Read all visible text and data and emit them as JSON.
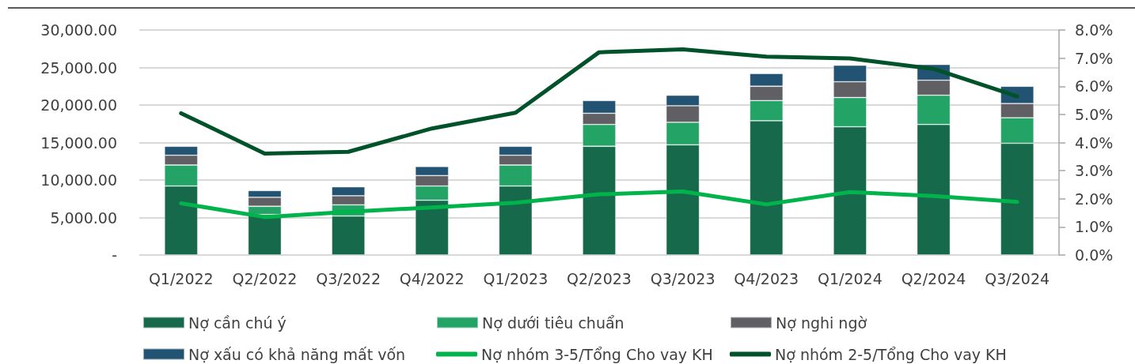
{
  "chart_data": {
    "type": "bar",
    "stacked": true,
    "categories": [
      "Q1/2022",
      "Q2/2022",
      "Q3/2022",
      "Q4/2022",
      "Q1/2023",
      "Q2/2023",
      "Q3/2023",
      "Q4/2023",
      "Q1/2024",
      "Q2/2024",
      "Q3/2024"
    ],
    "series": [
      {
        "name": "Nợ cần chú ý",
        "color": "#17694c",
        "values": [
          9200,
          5400,
          5200,
          7300,
          9200,
          14500,
          14700,
          17900,
          17100,
          17400,
          14900
        ]
      },
      {
        "name": "Nợ dưới tiêu chuẩn",
        "color": "#23a466",
        "values": [
          2800,
          1100,
          1500,
          1900,
          2800,
          2900,
          3000,
          2700,
          3900,
          3900,
          3400
        ]
      },
      {
        "name": "Nợ nghi ngờ",
        "color": "#5f5f64",
        "values": [
          1300,
          1200,
          1200,
          1400,
          1300,
          1500,
          2200,
          1900,
          2100,
          2000,
          1900
        ]
      },
      {
        "name": "Nợ xấu có khả năng mất vốn",
        "color": "#235372",
        "values": [
          1200,
          900,
          1200,
          1200,
          1200,
          1700,
          1400,
          1700,
          2200,
          2100,
          2300
        ]
      },
      {
        "name": "Nợ nhóm 3-5/Tổng Cho vay KH",
        "type": "line",
        "axis": "y2",
        "color": "#00b34a",
        "values": [
          1.84,
          1.35,
          1.54,
          1.69,
          1.86,
          2.16,
          2.26,
          1.8,
          2.24,
          2.1,
          1.89
        ]
      },
      {
        "name": "Nợ nhóm 2-5/Tổng Cho vay KH",
        "type": "line",
        "axis": "y2",
        "color": "#00522a",
        "values": [
          5.04,
          3.61,
          3.67,
          4.5,
          5.06,
          7.21,
          7.31,
          7.05,
          6.99,
          6.62,
          5.64
        ]
      }
    ],
    "ylim": [
      0,
      30000
    ],
    "yticks": [
      {
        "value": 0,
        "label": "-"
      },
      {
        "value": 5000,
        "label": "5,000.00"
      },
      {
        "value": 10000,
        "label": "10,000.00"
      },
      {
        "value": 15000,
        "label": "15,000.00"
      },
      {
        "value": 20000,
        "label": "20,000.00"
      },
      {
        "value": 25000,
        "label": "25,000.00"
      },
      {
        "value": 30000,
        "label": "30,000.00"
      }
    ],
    "y2lim": [
      0,
      8
    ],
    "y2ticks": [
      {
        "value": 0,
        "label": "0.0%"
      },
      {
        "value": 1,
        "label": "1.0%"
      },
      {
        "value": 2,
        "label": "2.0%"
      },
      {
        "value": 3,
        "label": "3.0%"
      },
      {
        "value": 4,
        "label": "4.0%"
      },
      {
        "value": 5,
        "label": "5.0%"
      },
      {
        "value": 6,
        "label": "6.0%"
      },
      {
        "value": 7,
        "label": "7.0%"
      },
      {
        "value": 8,
        "label": "8.0%"
      }
    ],
    "grid": "y",
    "legend": "bottom",
    "marker": "none",
    "line_style": "solid"
  }
}
